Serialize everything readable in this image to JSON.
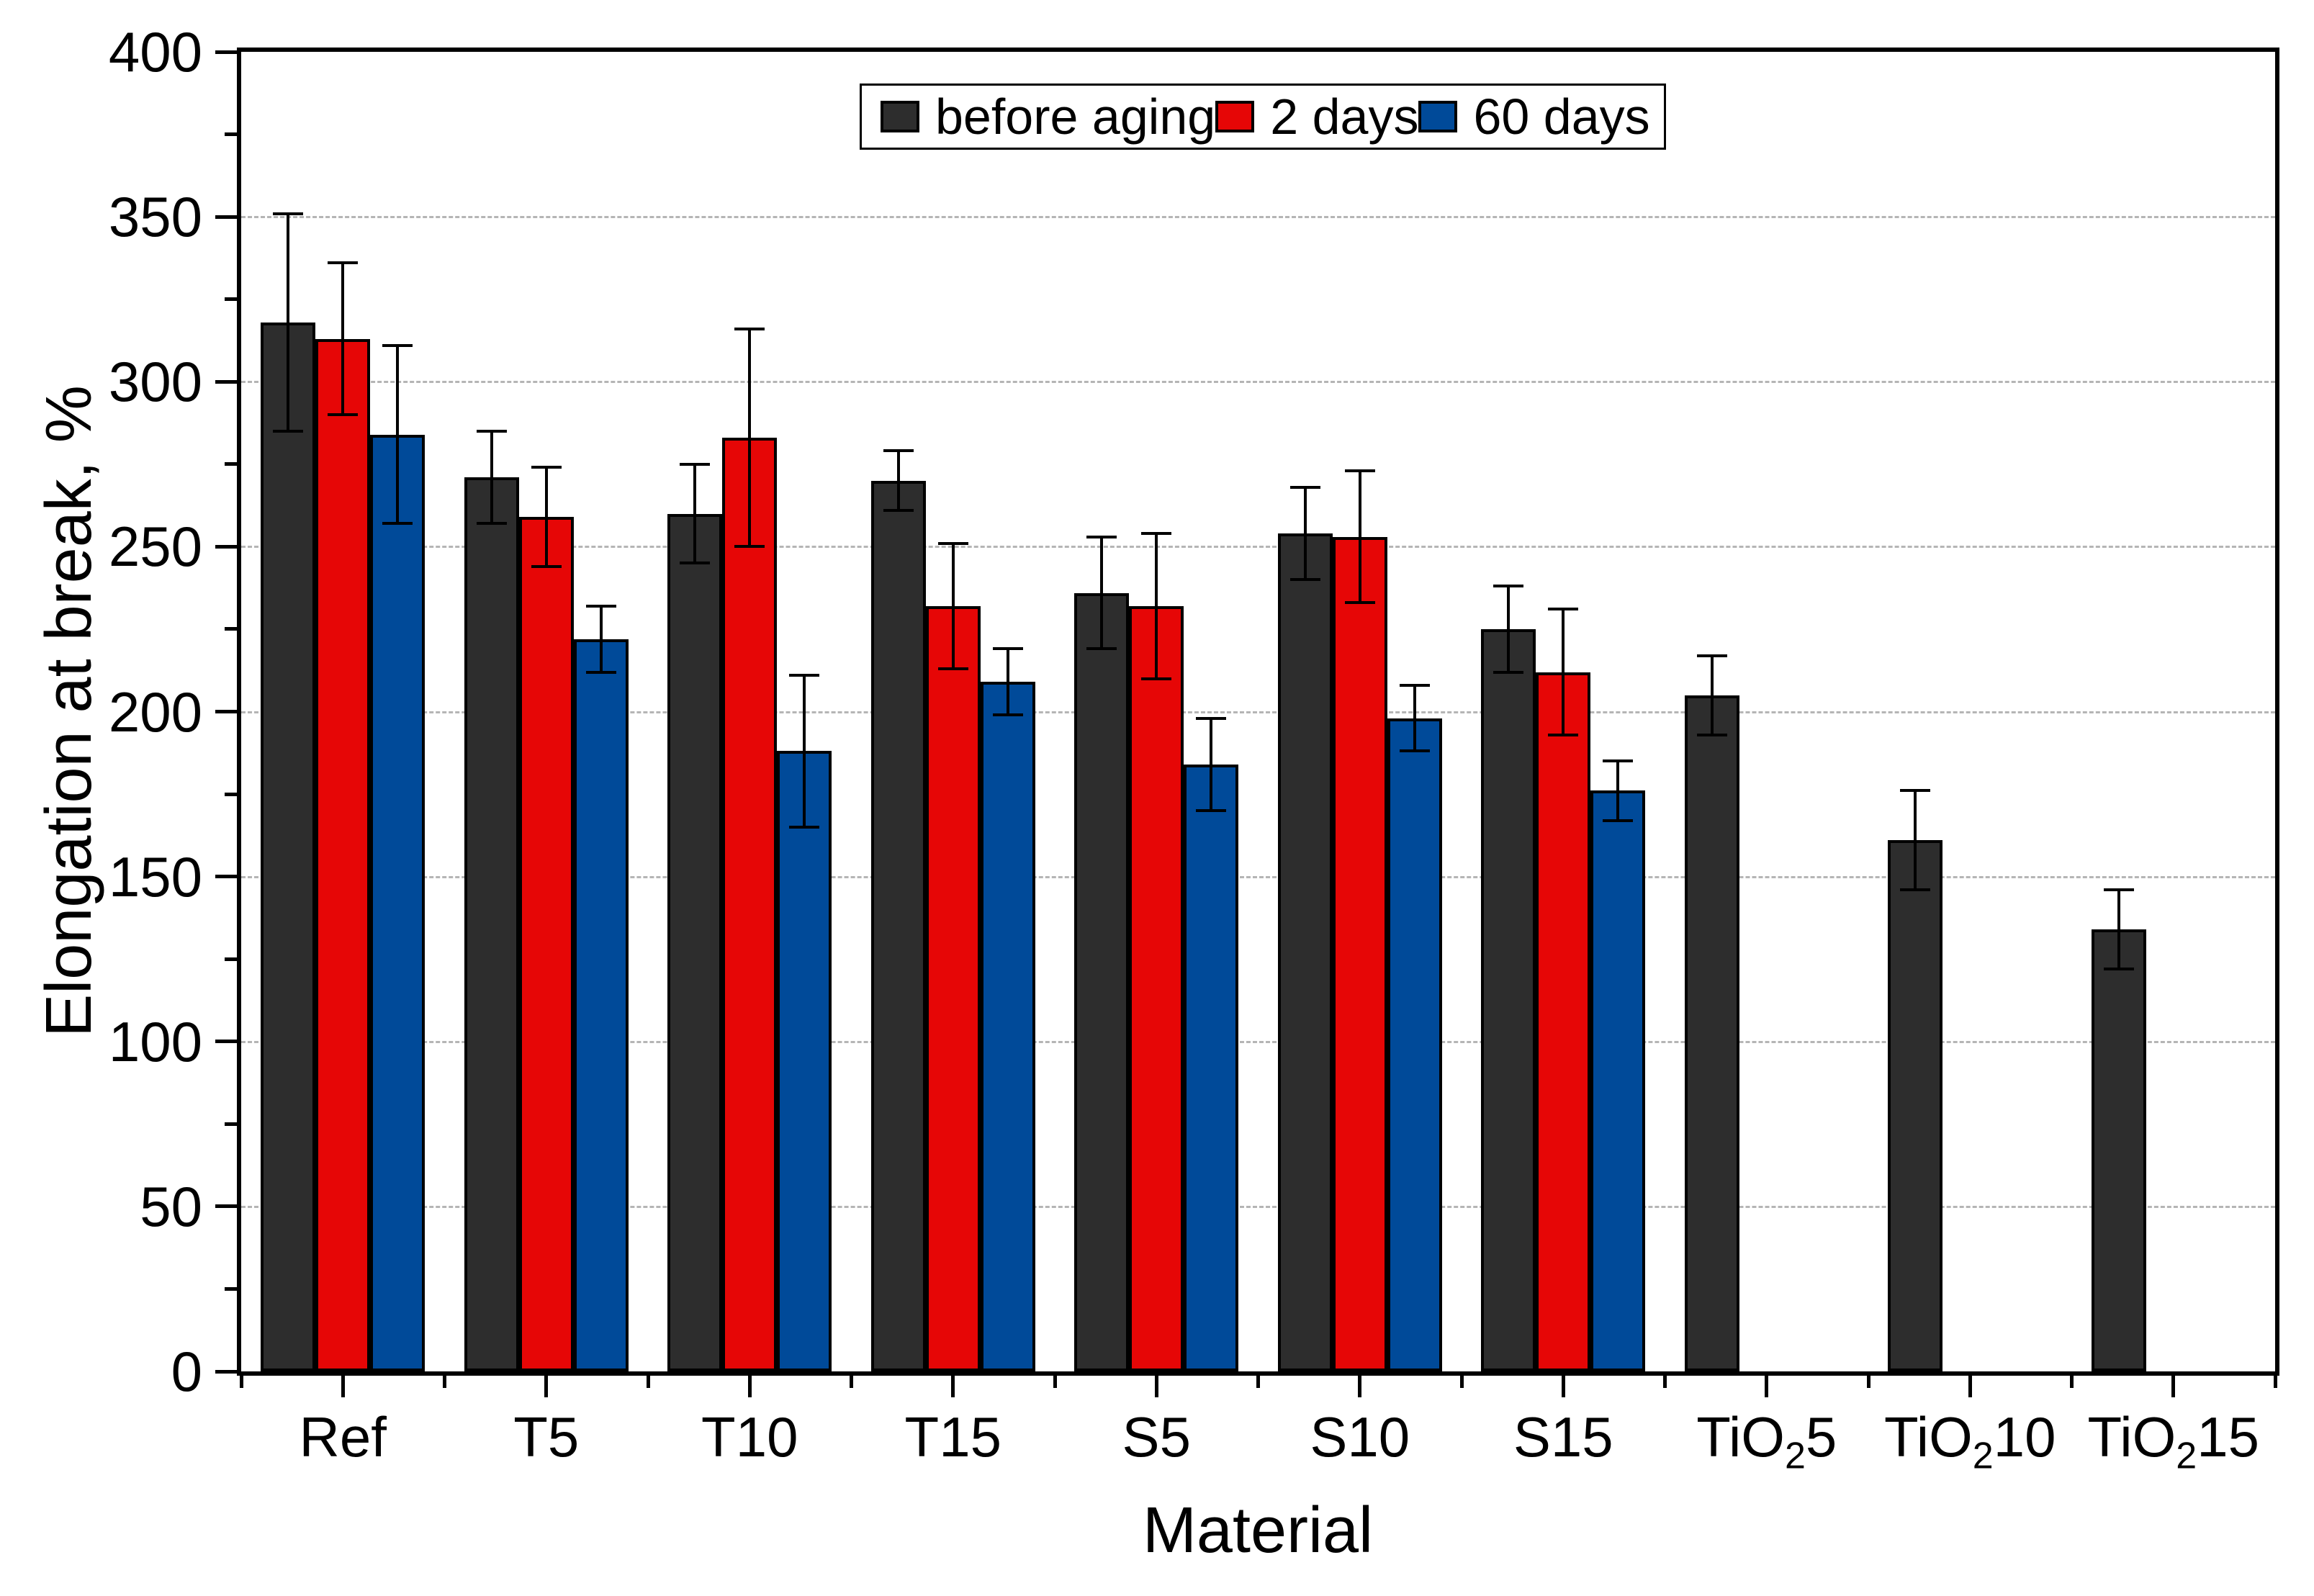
{
  "figure": {
    "kind": "grouped-bar-chart-with-error-bars",
    "background": "#ffffff"
  },
  "legend": {
    "items": [
      {
        "label": "before aging",
        "color": "#2d2d2d"
      },
      {
        "label": "2 days",
        "color": "#e60606"
      },
      {
        "label": "60 days",
        "color": "#004a99"
      }
    ]
  },
  "chart_data": {
    "type": "bar",
    "title": "",
    "xlabel": "Material",
    "ylabel": "Elongation at break, %",
    "ylim": [
      0,
      400
    ],
    "y_ticks": [
      0,
      50,
      100,
      150,
      200,
      250,
      300,
      350,
      400
    ],
    "y_major_step": 50,
    "y_minor_step": 25,
    "grid": "horizontal dashed gray at major ticks",
    "legend_position": "top center inside plot",
    "categories": [
      "Ref",
      "T5",
      "T10",
      "T15",
      "S5",
      "S10",
      "S15",
      "TiO₂5",
      "TiO₂10",
      "TiO₂15"
    ],
    "categories_rich": [
      {
        "pre": "Ref",
        "sub": "",
        "post": ""
      },
      {
        "pre": "T5",
        "sub": "",
        "post": ""
      },
      {
        "pre": "T10",
        "sub": "",
        "post": ""
      },
      {
        "pre": "T15",
        "sub": "",
        "post": ""
      },
      {
        "pre": "S5",
        "sub": "",
        "post": ""
      },
      {
        "pre": "S10",
        "sub": "",
        "post": ""
      },
      {
        "pre": "S15",
        "sub": "",
        "post": ""
      },
      {
        "pre": "TiO",
        "sub": "2",
        "post": "5"
      },
      {
        "pre": "TiO",
        "sub": "2",
        "post": "10"
      },
      {
        "pre": "TiO",
        "sub": "2",
        "post": "15"
      }
    ],
    "series": [
      {
        "name": "before aging",
        "color": "#2d2d2d",
        "values": [
          318,
          271,
          260,
          270,
          236,
          254,
          225,
          205,
          161,
          134
        ],
        "errors": [
          33,
          14,
          15,
          9,
          17,
          14,
          13,
          12,
          15,
          12
        ]
      },
      {
        "name": "2 days",
        "color": "#e60606",
        "values": [
          313,
          259,
          283,
          232,
          232,
          253,
          212,
          null,
          null,
          null
        ],
        "errors": [
          23,
          15,
          33,
          19,
          22,
          20,
          19,
          null,
          null,
          null
        ]
      },
      {
        "name": "60 days",
        "color": "#004a99",
        "values": [
          284,
          222,
          188,
          209,
          184,
          198,
          176,
          null,
          null,
          null
        ],
        "errors": [
          27,
          10,
          23,
          10,
          14,
          10,
          9,
          null,
          null,
          null
        ]
      }
    ]
  }
}
